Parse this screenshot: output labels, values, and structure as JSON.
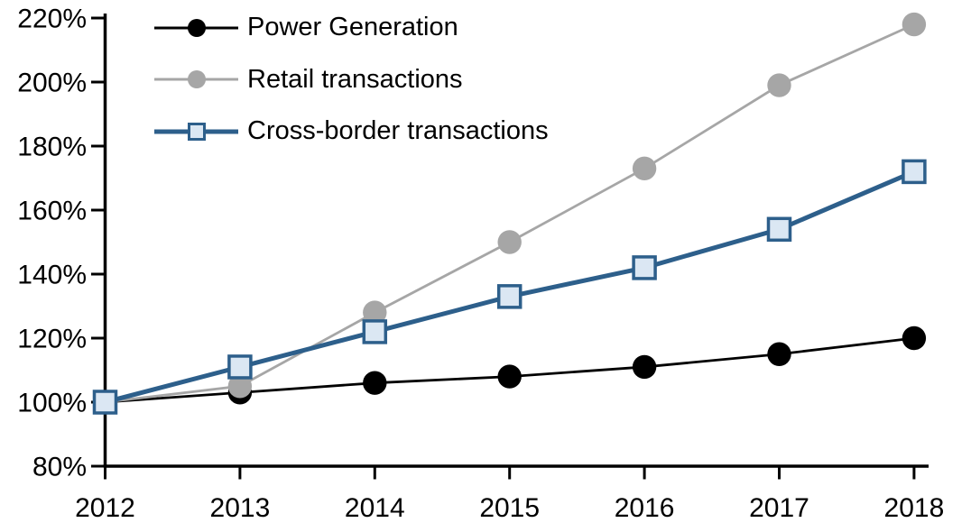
{
  "chart_data": {
    "type": "line",
    "title": "",
    "categories": [
      "2012",
      "2013",
      "2014",
      "2015",
      "2016",
      "2017",
      "2018"
    ],
    "series": [
      {
        "name": "Power Generation",
        "color": "#000000",
        "marker": "circle",
        "marker_fill": "#000000",
        "line_width": 2.8,
        "values": [
          100,
          103,
          106,
          108,
          111,
          115,
          120
        ]
      },
      {
        "name": "Retail transactions",
        "color": "#a6a6a6",
        "marker": "circle",
        "marker_fill": "#a6a6a6",
        "line_width": 2.8,
        "values": [
          100,
          105,
          128,
          150,
          173,
          199,
          218
        ]
      },
      {
        "name": "Cross-border transactions",
        "color": "#2d5f8b",
        "marker": "square",
        "marker_fill": "#dbe7f3",
        "line_width": 5,
        "values": [
          100,
          111,
          122,
          133,
          142,
          154,
          172
        ]
      }
    ],
    "x_axis": {
      "tick_labels": [
        "2012",
        "2013",
        "2014",
        "2015",
        "2016",
        "2017",
        "2018"
      ]
    },
    "y_axis": {
      "min": 80,
      "max": 220,
      "step": 20,
      "format": "percent",
      "tick_labels": [
        "80%",
        "100%",
        "120%",
        "140%",
        "160%",
        "180%",
        "200%",
        "220%"
      ]
    },
    "legend_position": "top-left",
    "grid": false,
    "axis_color": "#000000"
  }
}
